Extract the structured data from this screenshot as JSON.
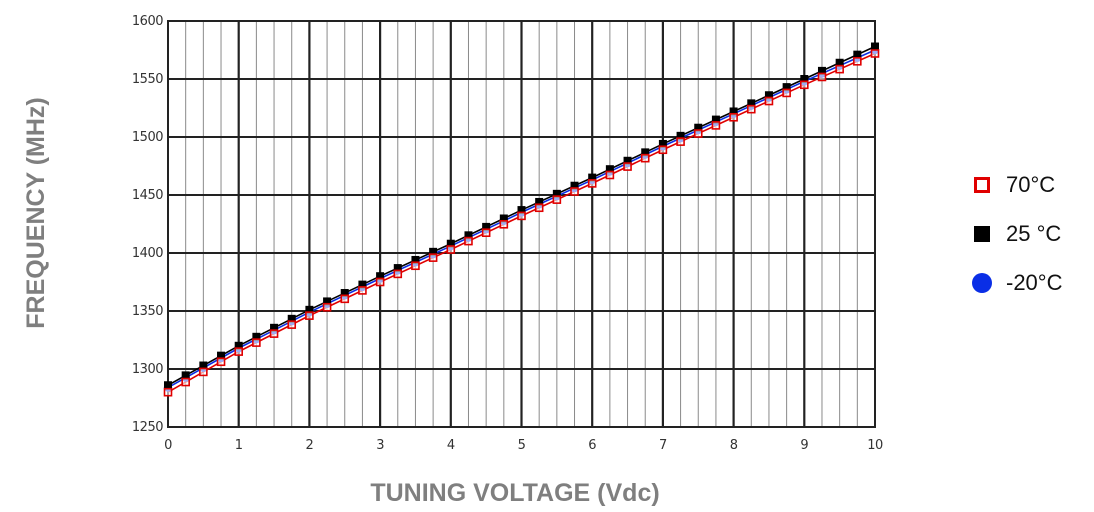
{
  "chart_data": {
    "type": "line",
    "xlabel": "TUNING VOLTAGE (Vdc)",
    "ylabel": "FREQUENCY (MHz)",
    "xlim": [
      0,
      10
    ],
    "ylim": [
      1250,
      1600
    ],
    "grid": true,
    "legend_placement": "right",
    "x_ticks": [
      "0",
      "1",
      "2",
      "3",
      "4",
      "5",
      "6",
      "7",
      "8",
      "9",
      "10"
    ],
    "y_ticks": [
      "1250",
      "1300",
      "1350",
      "1400",
      "1450",
      "1500",
      "1550",
      "1600"
    ],
    "x": [
      0,
      1,
      2,
      3,
      4,
      5,
      6,
      7,
      8,
      9,
      10
    ],
    "series": [
      {
        "name": "70°C",
        "marker": "open-square",
        "color": "#e00000",
        "values": [
          1280,
          1315,
          1346,
          1375,
          1403,
          1432,
          1460,
          1489,
          1517,
          1545,
          1572
        ]
      },
      {
        "name": "25 °C",
        "marker": "filled-square",
        "color": "#000000",
        "values": [
          1286,
          1320,
          1351,
          1380,
          1408,
          1437,
          1465,
          1494,
          1522,
          1550,
          1578
        ]
      },
      {
        "name": "-20°C",
        "marker": "circle",
        "color": "#0a2ee6",
        "values": [
          1284,
          1318,
          1349,
          1378,
          1406,
          1435,
          1463,
          1492,
          1520,
          1548,
          1575
        ]
      }
    ]
  },
  "legend": {
    "items": [
      {
        "label": "70°C"
      },
      {
        "label": "25 °C"
      },
      {
        "label": "-20°C"
      }
    ]
  }
}
